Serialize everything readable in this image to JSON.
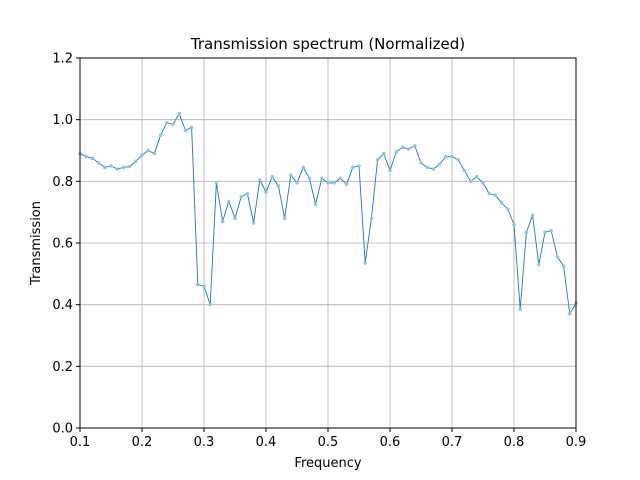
{
  "chart_data": {
    "type": "line",
    "title": "Transmission spectrum (Normalized)",
    "xlabel": "Frequency",
    "ylabel": "Transmission",
    "xlim": [
      0.1,
      0.9
    ],
    "ylim": [
      0.0,
      1.2
    ],
    "xticks": [
      "0.1",
      "0.2",
      "0.3",
      "0.4",
      "0.5",
      "0.6",
      "0.7",
      "0.8",
      "0.9"
    ],
    "yticks": [
      "0.0",
      "0.2",
      "0.4",
      "0.6",
      "0.8",
      "1.0",
      "1.2"
    ],
    "grid": true,
    "line_color": "#1f77b4",
    "marker_color": "#8ec3e6",
    "series": [
      {
        "x": [
          0.1,
          0.11,
          0.12,
          0.13,
          0.14,
          0.15,
          0.16,
          0.17,
          0.18,
          0.19,
          0.2,
          0.21,
          0.22,
          0.23,
          0.24,
          0.25,
          0.26,
          0.27,
          0.28,
          0.29,
          0.3,
          0.31,
          0.32,
          0.33,
          0.34,
          0.35,
          0.36,
          0.37,
          0.38,
          0.39,
          0.4,
          0.41,
          0.42,
          0.43,
          0.44,
          0.45,
          0.46,
          0.47,
          0.48,
          0.49,
          0.5,
          0.51,
          0.52,
          0.53,
          0.54,
          0.55,
          0.56,
          0.57,
          0.58,
          0.59,
          0.6,
          0.61,
          0.62,
          0.63,
          0.64,
          0.65,
          0.66,
          0.67,
          0.68,
          0.69,
          0.7,
          0.71,
          0.72,
          0.73,
          0.74,
          0.75,
          0.76,
          0.77,
          0.78,
          0.79,
          0.8,
          0.81,
          0.82,
          0.83,
          0.84,
          0.85,
          0.86,
          0.87,
          0.88,
          0.89,
          0.9
        ],
        "values": [
          0.89,
          0.88,
          0.875,
          0.86,
          0.845,
          0.85,
          0.84,
          0.845,
          0.848,
          0.865,
          0.885,
          0.9,
          0.89,
          0.95,
          0.99,
          0.985,
          1.02,
          0.965,
          0.975,
          0.465,
          0.46,
          0.4,
          0.795,
          0.67,
          0.735,
          0.68,
          0.75,
          0.76,
          0.665,
          0.805,
          0.765,
          0.815,
          0.785,
          0.68,
          0.82,
          0.795,
          0.845,
          0.81,
          0.725,
          0.81,
          0.795,
          0.795,
          0.81,
          0.79,
          0.845,
          0.85,
          0.535,
          0.68,
          0.87,
          0.89,
          0.835,
          0.895,
          0.91,
          0.905,
          0.915,
          0.86,
          0.845,
          0.84,
          0.855,
          0.88,
          0.88,
          0.87,
          0.835,
          0.8,
          0.815,
          0.795,
          0.76,
          0.755,
          0.73,
          0.71,
          0.66,
          0.385,
          0.635,
          0.69,
          0.53,
          0.635,
          0.64,
          0.555,
          0.525,
          0.37,
          0.405
        ]
      }
    ]
  }
}
